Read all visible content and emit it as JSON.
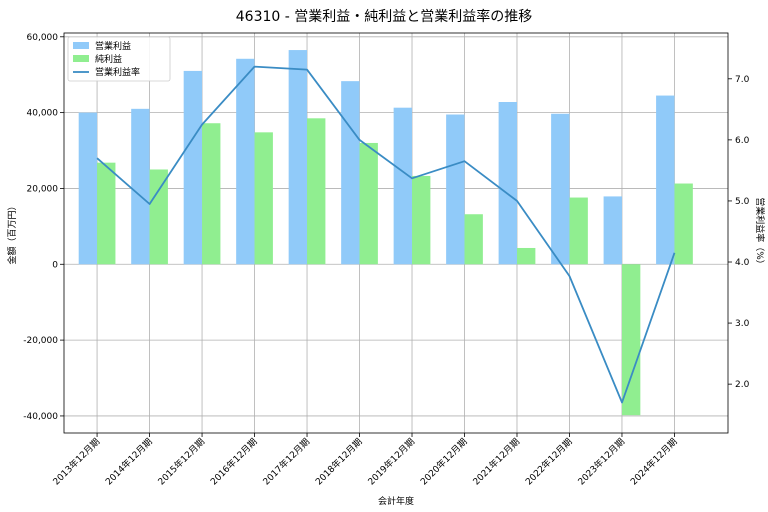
{
  "chart_data": {
    "type": "bar",
    "title": "46310 - 営業利益・純利益と営業利益率の推移",
    "xlabel": "会計年度",
    "ylabel": "金額（百万円）",
    "y2label": "営業利益率（%）",
    "categories": [
      "2013年12月期",
      "2014年12月期",
      "2015年12月期",
      "2016年12月期",
      "2017年12月期",
      "2018年12月期",
      "2019年12月期",
      "2020年12月期",
      "2021年12月期",
      "2022年12月期",
      "2023年12月期",
      "2024年12月期"
    ],
    "series": [
      {
        "name": "営業利益",
        "type": "bar",
        "axis": "left",
        "color": "#90CAF9",
        "values": [
          40000,
          41000,
          51000,
          54200,
          56500,
          48300,
          41300,
          39500,
          42800,
          39700,
          17900,
          44500
        ]
      },
      {
        "name": "純利益",
        "type": "bar",
        "axis": "left",
        "color": "#90EE90",
        "values": [
          26800,
          25000,
          37200,
          34800,
          38500,
          32000,
          23300,
          13200,
          4300,
          17600,
          -39800,
          21300
        ]
      },
      {
        "name": "営業利益率",
        "type": "line",
        "axis": "right",
        "color": "#3A8CC4",
        "values": [
          5.7,
          4.95,
          6.25,
          7.2,
          7.15,
          6.0,
          5.37,
          5.65,
          5.0,
          3.77,
          1.7,
          4.15
        ]
      }
    ],
    "ylim": [
      -44500,
      61000
    ],
    "y2lim": [
      1.2,
      7.75
    ],
    "yticks": [
      -40000,
      -20000,
      0,
      20000,
      40000,
      60000
    ],
    "ytick_labels": [
      "-40,000",
      "-20,000",
      "0",
      "20,000",
      "40,000",
      "60,000"
    ],
    "y2ticks": [
      2.0,
      3.0,
      4.0,
      5.0,
      6.0,
      7.0
    ],
    "y2tick_labels": [
      "2.0",
      "3.0",
      "4.0",
      "5.0",
      "6.0",
      "7.0"
    ],
    "legend": "top-left",
    "grid": true
  }
}
